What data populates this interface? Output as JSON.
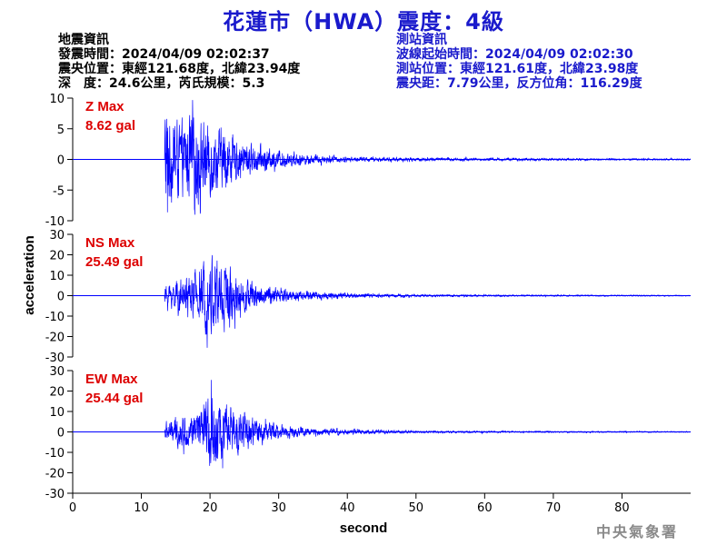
{
  "header": {
    "title": "花蓮市（HWA）震度：4級"
  },
  "quake_info": {
    "heading": "地震資訊",
    "origin_time": "發震時間：2024/04/09 02:02:37",
    "epicenter": "震央位置：東經121.68度，北緯23.94度",
    "depth_magnitude": "深　度：24.6公里，芮氏規模：5.3"
  },
  "station_info": {
    "heading": "測站資訊",
    "wave_start": "波線起始時間：2024/04/09 02:02:30",
    "location": "測站位置：東經121.61度，北緯23.98度",
    "distance": "震央距：7.79公里，反方位角：116.29度"
  },
  "footer": {
    "agency": "中央氣象署"
  },
  "chart_data": {
    "type": "line",
    "xlabel": "second",
    "ylabel": "acceleration",
    "xlim": [
      0,
      90
    ],
    "x_ticks": [
      0,
      10,
      20,
      30,
      40,
      50,
      60,
      70,
      80
    ],
    "line_color": "#0000ff",
    "label_color": "#dd0000",
    "panels": [
      {
        "name": "Z Max",
        "max_text": "8.62 gal",
        "ylim": [
          -10,
          10
        ],
        "y_ticks": [
          -10,
          -5,
          0,
          5,
          10
        ],
        "onset": 13.4,
        "peak_time": 13.8,
        "peak_value": -8.62,
        "envelope_times": [
          13.4,
          14.5,
          16,
          18,
          20,
          22,
          24,
          27,
          30,
          35,
          40,
          50,
          60,
          70,
          80,
          90
        ],
        "envelope_values": [
          8.0,
          5.5,
          5.0,
          6.0,
          5.0,
          4.0,
          2.8,
          1.8,
          1.1,
          0.6,
          0.35,
          0.25,
          0.2,
          0.15,
          0.12,
          0.1
        ]
      },
      {
        "name": "NS Max",
        "max_text": "25.49 gal",
        "ylim": [
          -30,
          30
        ],
        "y_ticks": [
          -30,
          -20,
          -10,
          0,
          10,
          20,
          30
        ],
        "onset": 13.4,
        "peak_time": 19.6,
        "peak_value": -25.49,
        "envelope_times": [
          13.4,
          15,
          17,
          19,
          20.5,
          22,
          23.5,
          25,
          27,
          30,
          35,
          40,
          50,
          60,
          70,
          80,
          90
        ],
        "envelope_values": [
          4,
          6,
          8,
          13,
          16,
          17,
          9,
          7,
          5,
          3,
          1.8,
          1.0,
          0.5,
          0.35,
          0.3,
          0.25,
          0.2
        ]
      },
      {
        "name": "EW Max",
        "max_text": "25.44 gal",
        "ylim": [
          -30,
          30
        ],
        "y_ticks": [
          -30,
          -20,
          -10,
          0,
          10,
          20,
          30
        ],
        "onset": 13.4,
        "peak_time": 20.2,
        "peak_value": 25.44,
        "envelope_times": [
          13.4,
          15,
          17,
          19,
          20.5,
          22,
          24,
          26,
          28,
          30,
          35,
          40,
          50,
          60,
          70,
          80,
          90
        ],
        "envelope_values": [
          4,
          6,
          6,
          10,
          16,
          12,
          8,
          6,
          4.5,
          3,
          1.6,
          1.0,
          0.5,
          0.35,
          0.3,
          0.25,
          0.2
        ]
      }
    ]
  }
}
